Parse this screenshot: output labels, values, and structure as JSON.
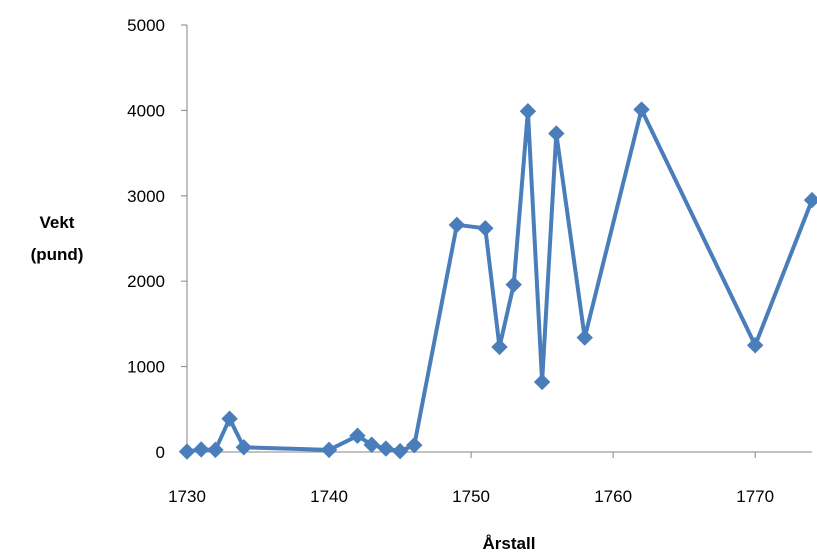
{
  "chart_data": {
    "type": "line",
    "title": "",
    "xlabel": "Årstall",
    "ylabel_lines": [
      "Vekt",
      "(pund)"
    ],
    "xlim": [
      1730,
      1774
    ],
    "ylim": [
      0,
      5000
    ],
    "xticks": [
      1730,
      1740,
      1750,
      1760,
      1770
    ],
    "yticks": [
      0,
      1000,
      2000,
      3000,
      4000,
      5000
    ],
    "grid": false,
    "legend": "none",
    "marker": "diamond",
    "color": "#4a7ebb",
    "series": [
      {
        "x": [
          1730,
          1731,
          1732,
          1733,
          1734,
          1740,
          1742,
          1743,
          1744,
          1745,
          1746,
          1749,
          1751,
          1752,
          1753,
          1754,
          1755,
          1756,
          1758,
          1762,
          1770,
          1774
        ],
        "y": [
          5,
          30,
          25,
          390,
          55,
          25,
          190,
          85,
          40,
          10,
          80,
          2660,
          2620,
          1230,
          1960,
          3990,
          820,
          3730,
          1340,
          4010,
          1250,
          2950
        ]
      }
    ]
  }
}
